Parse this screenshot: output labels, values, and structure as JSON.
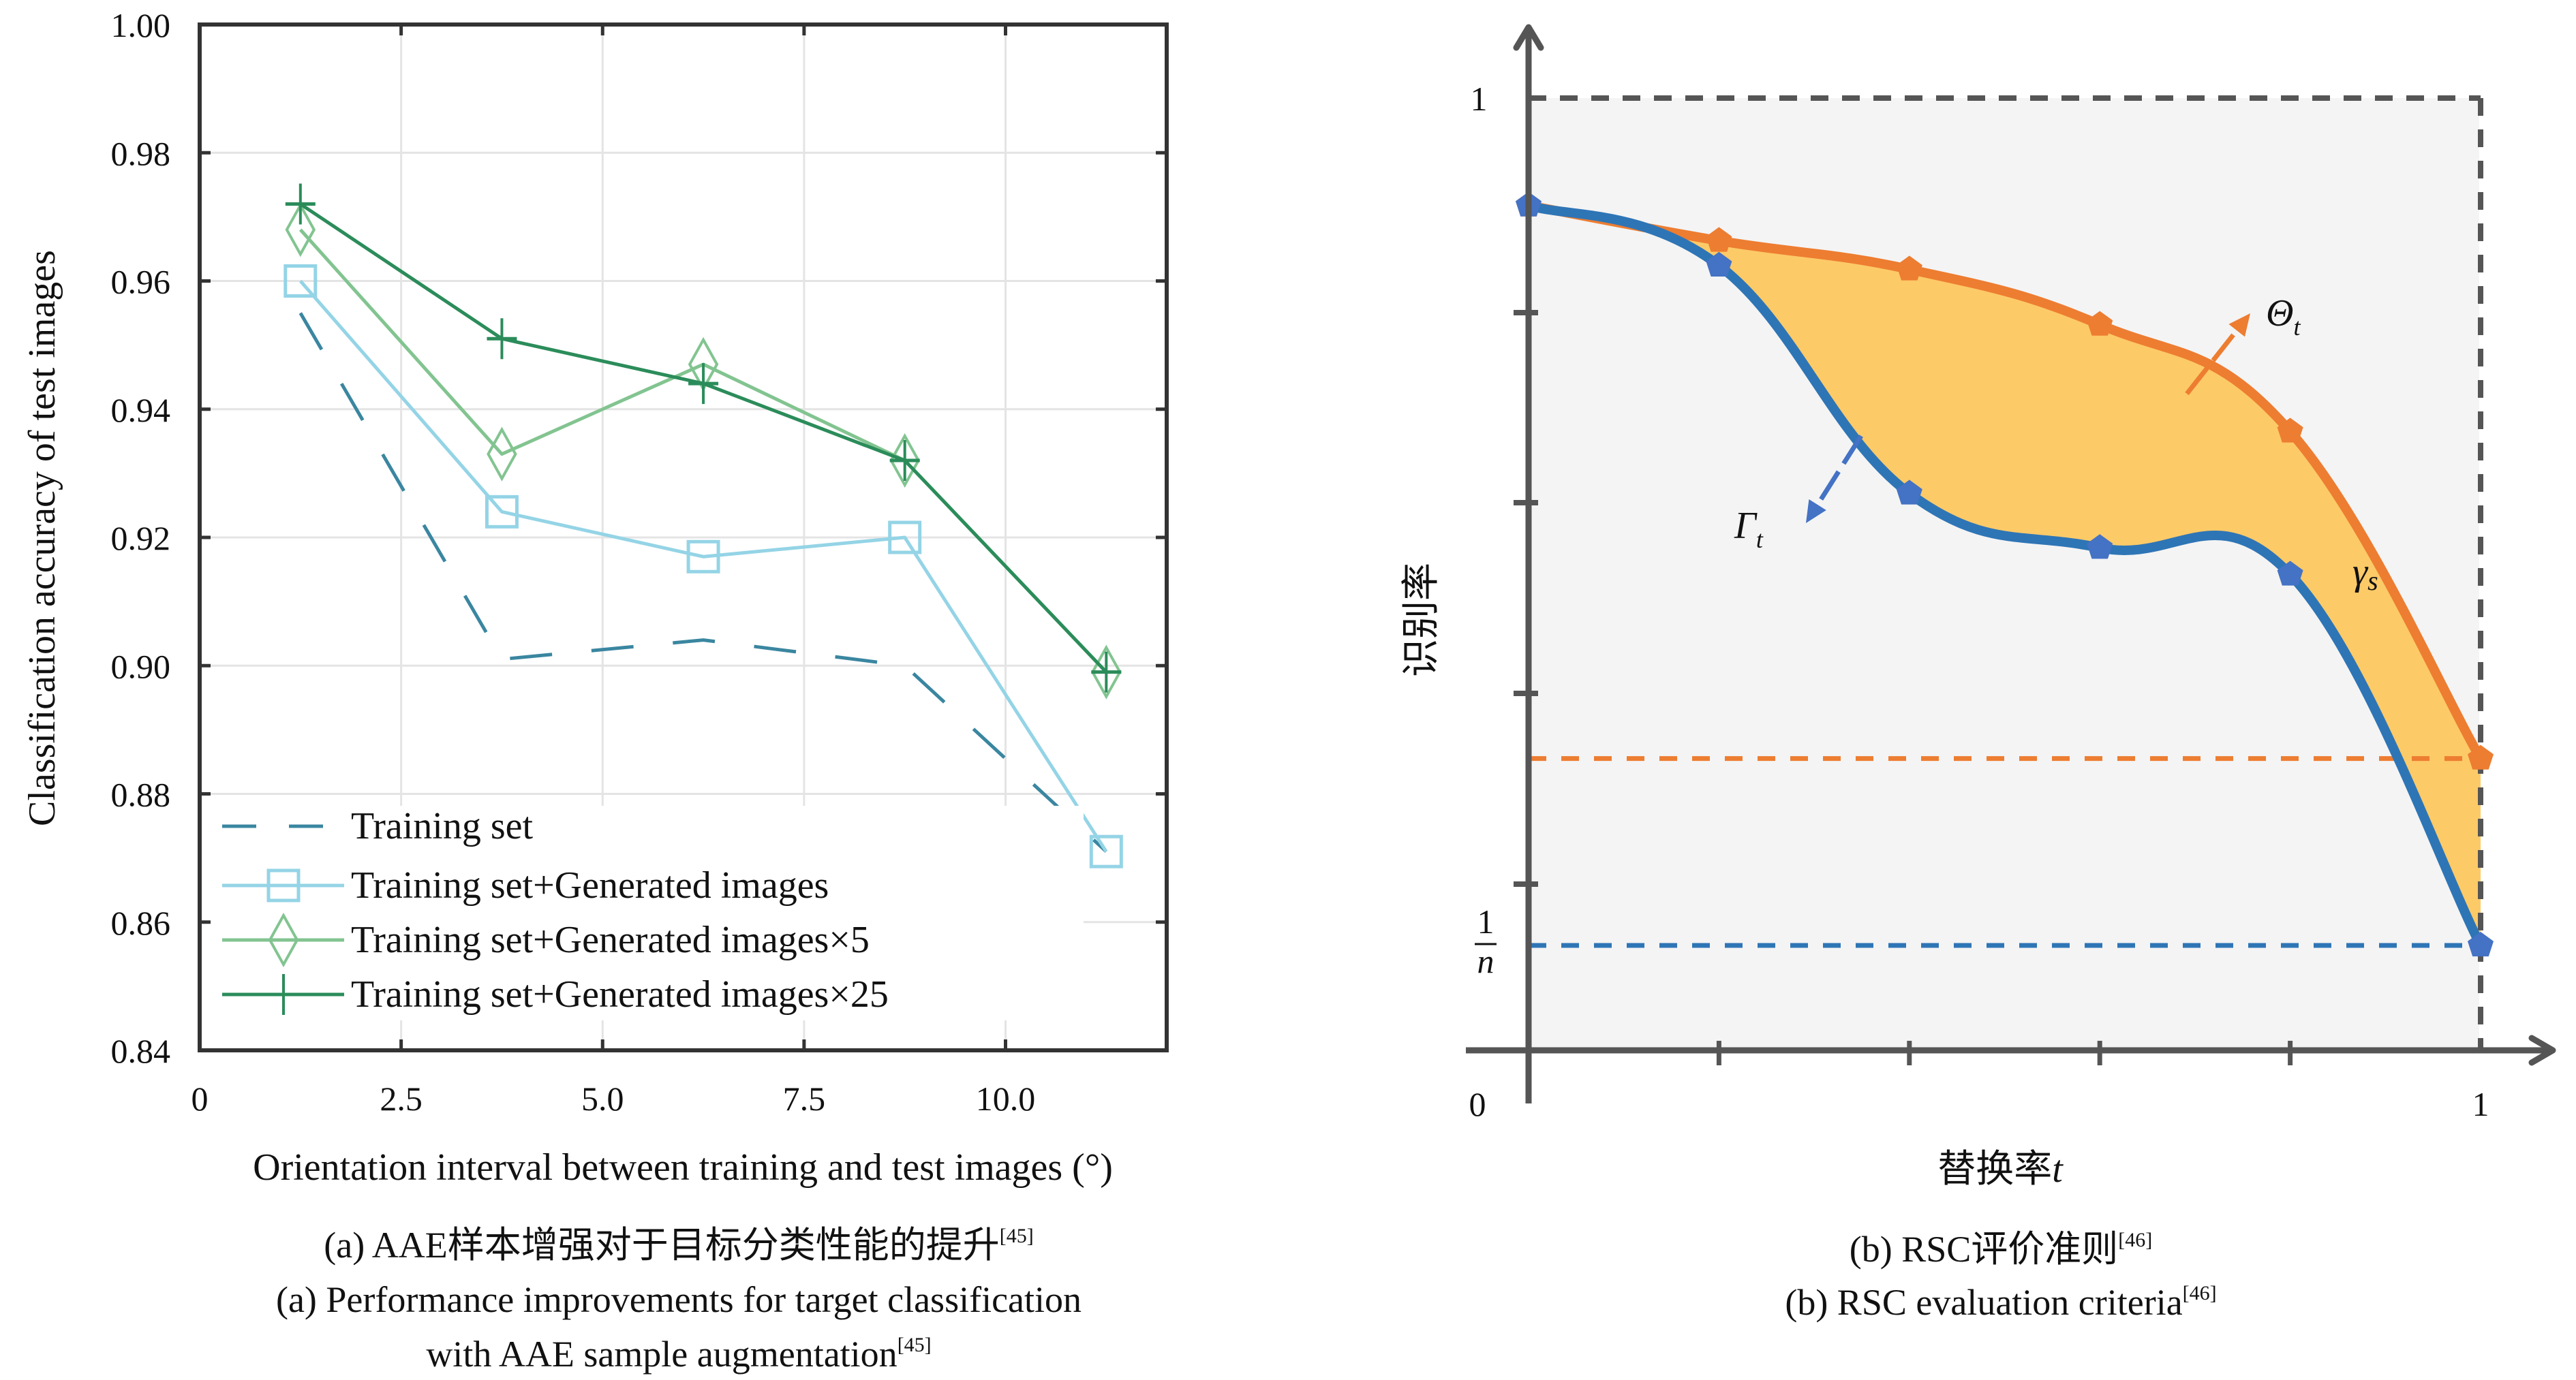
{
  "chart_data": [
    {
      "type": "line",
      "panel": "a",
      "title": "",
      "xlabel": "Orientation interval between training and test images (°)",
      "ylabel": "Classification accuracy of test images",
      "xlim": [
        0,
        12
      ],
      "ylim": [
        0.84,
        1.0
      ],
      "grid": true,
      "legend_position": "bottom-left",
      "x_ticks": [
        0,
        2.5,
        5.0,
        7.5,
        10.0
      ],
      "x_tick_labels": [
        "0",
        "2.5",
        "5.0",
        "7.5",
        "10.0"
      ],
      "y_ticks": [
        0.84,
        0.86,
        0.88,
        0.9,
        0.92,
        0.94,
        0.96,
        0.98,
        1.0
      ],
      "y_tick_labels": [
        "0.84",
        "0.86",
        "0.88",
        "0.90",
        "0.92",
        "0.94",
        "0.96",
        "0.98",
        "1.00"
      ],
      "x": [
        1.25,
        3.75,
        6.25,
        8.75,
        11.25
      ],
      "series": [
        {
          "name": "Training set",
          "values": [
            0.955,
            0.901,
            0.904,
            0.9,
            0.871
          ],
          "color": "#3a86a0",
          "style": "dashed",
          "marker": "none"
        },
        {
          "name": "Training set+Generated images",
          "values": [
            0.96,
            0.924,
            0.917,
            0.92,
            0.871
          ],
          "color": "#94d4e6",
          "style": "solid",
          "marker": "square"
        },
        {
          "name": "Training set+Generated images×5",
          "values": [
            0.968,
            0.933,
            0.947,
            0.932,
            0.899
          ],
          "color": "#82c490",
          "style": "solid",
          "marker": "diamond"
        },
        {
          "name": "Training set+Generated images×25",
          "values": [
            0.972,
            0.951,
            0.944,
            0.932,
            0.899
          ],
          "color": "#2b8c5a",
          "style": "solid",
          "marker": "plus"
        }
      ],
      "caption_zh": {
        "text": "(a) AAE样本增强对于目标分类性能的提升",
        "ref": "[45]"
      },
      "caption_en": {
        "line1": "(a) Performance improvements for target classification",
        "line2": "with AAE sample augmentation",
        "ref": "[45]"
      }
    },
    {
      "type": "area",
      "panel": "b",
      "xlabel": "替换率",
      "xlabel_var": "t",
      "ylabel": "识别率",
      "xlim": [
        0,
        1
      ],
      "ylim": [
        0,
        1
      ],
      "origin_label": "0",
      "x_end_label": "1",
      "y_top_label": "1",
      "y_frac_label": {
        "num": "1",
        "den": "n"
      },
      "x": [
        0,
        0.2,
        0.4,
        0.6,
        0.8,
        1.0
      ],
      "series": [
        {
          "name": "Θ",
          "sub": "t",
          "values": [
            0.886,
            0.849,
            0.819,
            0.761,
            0.649,
            0.306
          ],
          "color": "#ed7d31",
          "marker_color": "#ed7d31"
        },
        {
          "name": "Γ",
          "sub": "t",
          "values": [
            0.886,
            0.823,
            0.584,
            0.527,
            0.499,
            0.11
          ],
          "color": "#2e75b6",
          "marker_color": "#4472c4"
        }
      ],
      "area_label": {
        "name": "γ",
        "sub": "s"
      },
      "area_color": "#fdca68",
      "reference_lines": [
        {
          "label": "1/n",
          "value": 0.11,
          "color": "#2e75b6"
        },
        {
          "value": 0.306,
          "color": "#ed7d31"
        }
      ],
      "background_color": "#f4f4f4",
      "caption_zh": {
        "text": "(b) RSC评价准则",
        "ref": "[46]"
      },
      "caption_en": {
        "text": "(b) RSC evaluation criteria",
        "ref": "[46]"
      }
    }
  ]
}
